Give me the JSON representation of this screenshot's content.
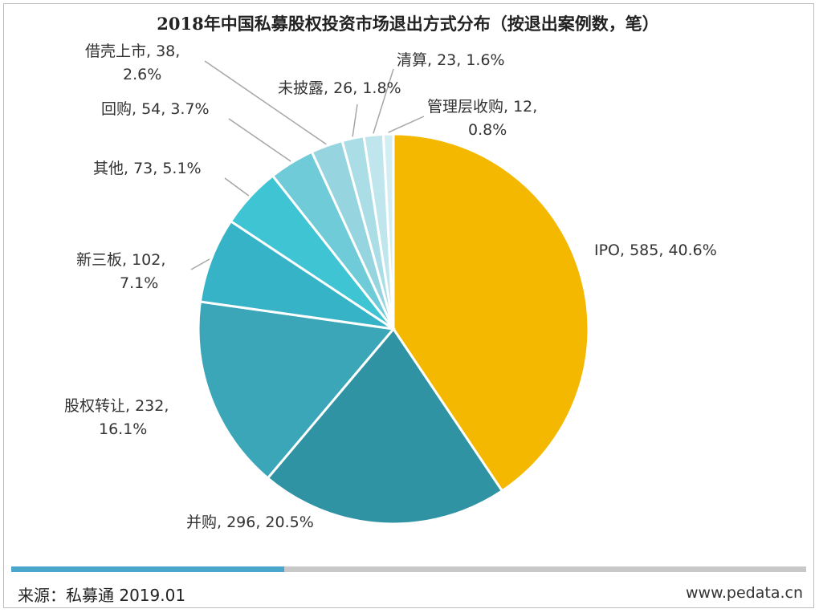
{
  "chart_data": {
    "type": "pie",
    "title": "2018年中国私募股权投资市场退出方式分布（按退出案例数，笔）",
    "slices": [
      {
        "label": "IPO",
        "value": 585,
        "percent": "40.6%",
        "color": "#f5b800"
      },
      {
        "label": "并购",
        "value": 296,
        "percent": "20.5%",
        "color": "#2f93a3"
      },
      {
        "label": "股权转让",
        "value": 232,
        "percent": "16.1%",
        "color": "#3aa6b8"
      },
      {
        "label": "新三板",
        "value": 102,
        "percent": "7.1%",
        "color": "#36b3c6"
      },
      {
        "label": "其他",
        "value": 73,
        "percent": "5.1%",
        "color": "#3ec4d3"
      },
      {
        "label": "回购",
        "value": 54,
        "percent": "3.7%",
        "color": "#6fcbd8"
      },
      {
        "label": "借壳上市",
        "value": 38,
        "percent": "2.6%",
        "color": "#96d5e0"
      },
      {
        "label": "未披露",
        "value": 26,
        "percent": "1.8%",
        "color": "#aadde6"
      },
      {
        "label": "清算",
        "value": 23,
        "percent": "1.6%",
        "color": "#bfe5ed"
      },
      {
        "label": "管理层收购",
        "value": 12,
        "percent": "0.8%",
        "color": "#d3eef3"
      }
    ]
  },
  "footer": {
    "source": "来源：私募通 2019.01",
    "website": "www.pedata.cn"
  }
}
